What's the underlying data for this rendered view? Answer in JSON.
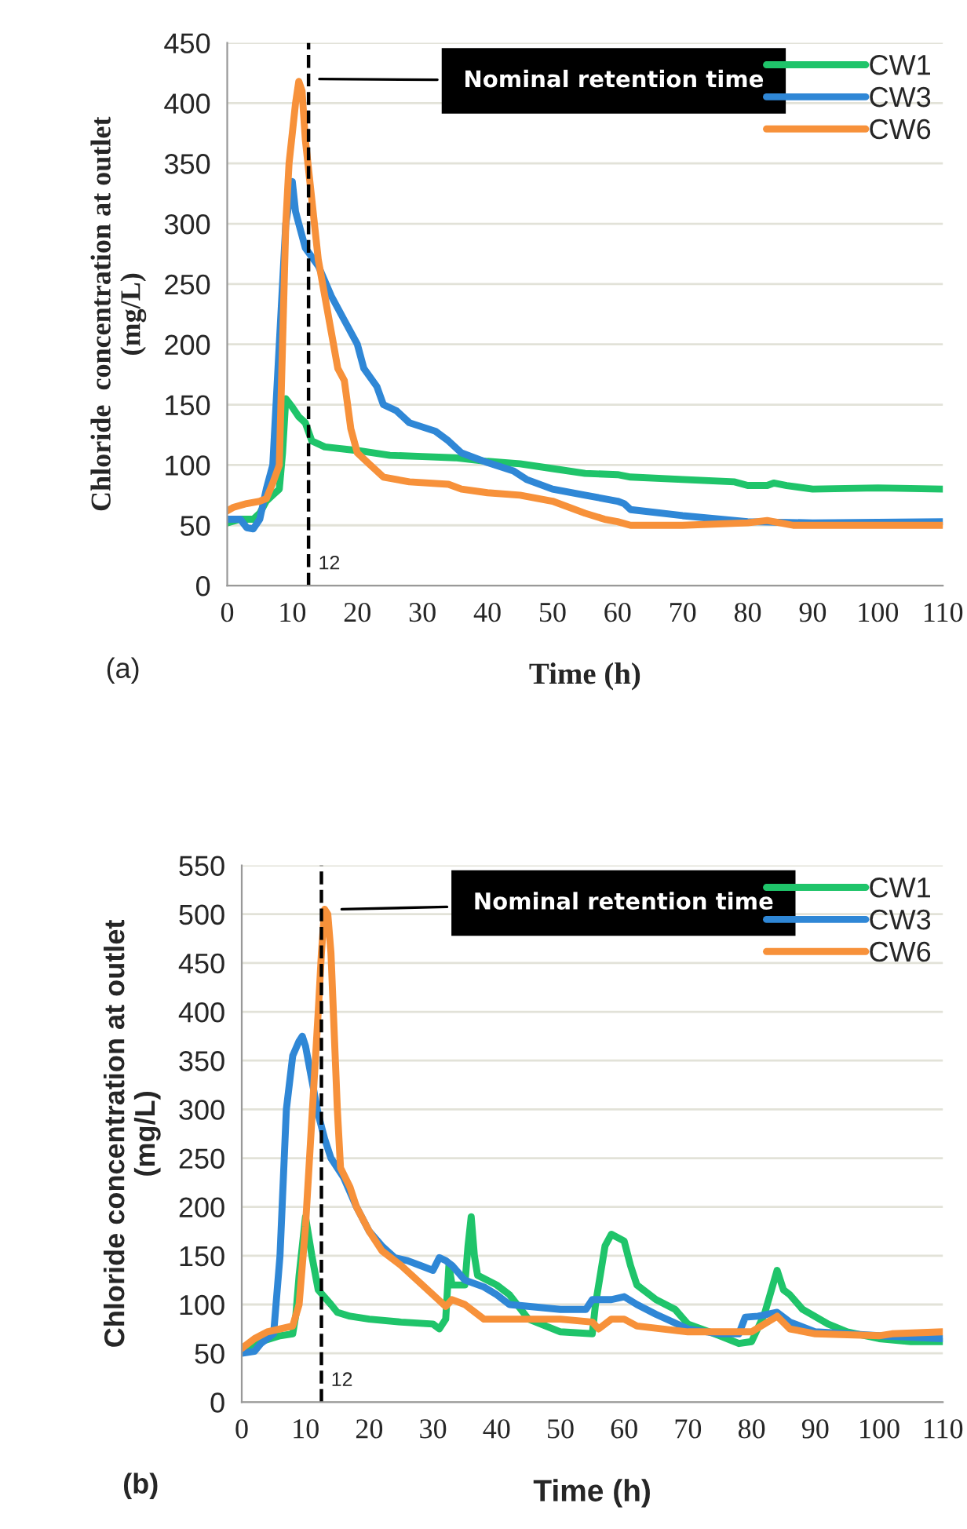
{
  "chart_data": [
    {
      "type": "line",
      "xlabel": "Time (h)",
      "ylabel": "Chloride  concentration at outlet\n(mg/L)",
      "xlim": [
        0,
        110
      ],
      "xticks": [
        0,
        10,
        20,
        30,
        40,
        50,
        60,
        70,
        80,
        90,
        100,
        110
      ],
      "ylim": [
        0,
        450
      ],
      "yticks": [
        0,
        50,
        100,
        150,
        200,
        250,
        300,
        350,
        400,
        450
      ],
      "grid": "y",
      "legend": "top right",
      "marker": "none",
      "line_style": "solid",
      "ref_lines": [
        {
          "axis": "x",
          "value": 12.5,
          "label": "12",
          "color": "#000000",
          "line_style": "dashed"
        }
      ],
      "annotations": [
        {
          "text": "Nominal retention time",
          "x": 13.5,
          "y": 420
        },
        "(a)"
      ],
      "series": [
        {
          "name": "CW1",
          "color": "#1fc46a",
          "x": [
            0,
            2,
            4,
            5,
            6,
            7,
            8,
            8.5,
            9,
            10,
            11,
            12,
            13,
            15,
            20,
            25,
            30,
            35,
            40,
            45,
            50,
            55,
            60,
            62,
            70,
            78,
            80,
            83,
            84,
            86,
            90,
            100,
            110
          ],
          "values": [
            52,
            55,
            55,
            60,
            70,
            75,
            80,
            110,
            155,
            148,
            140,
            135,
            120,
            115,
            112,
            108,
            107,
            106,
            103,
            101,
            97,
            93,
            92,
            90,
            88,
            86,
            83,
            83,
            85,
            83,
            80,
            81,
            80
          ]
        },
        {
          "name": "CW3",
          "color": "#2f87d6",
          "x": [
            0,
            2,
            3,
            4,
            5,
            6,
            7,
            8,
            9,
            10,
            10.5,
            11,
            12,
            14,
            16,
            18,
            20,
            21,
            23,
            24,
            26,
            28,
            32,
            34,
            36,
            40,
            44,
            46,
            50,
            55,
            60,
            61,
            62,
            70,
            80,
            90,
            110
          ],
          "values": [
            55,
            55,
            48,
            47,
            55,
            80,
            100,
            200,
            300,
            335,
            310,
            300,
            280,
            265,
            240,
            220,
            200,
            180,
            165,
            150,
            145,
            135,
            128,
            120,
            110,
            102,
            95,
            88,
            80,
            75,
            70,
            68,
            63,
            58,
            53,
            52,
            53
          ]
        },
        {
          "name": "CW6",
          "color": "#f7913a",
          "x": [
            0,
            1,
            3,
            5,
            6,
            7,
            8,
            8.5,
            9,
            9.5,
            10.5,
            11,
            11.5,
            12,
            13,
            14,
            16,
            17,
            18,
            19,
            20,
            22,
            24,
            28,
            34,
            36,
            40,
            45,
            50,
            55,
            58,
            60,
            62,
            70,
            80,
            83,
            87,
            90,
            110
          ],
          "values": [
            62,
            65,
            68,
            70,
            72,
            85,
            100,
            200,
            300,
            350,
            400,
            418,
            410,
            370,
            320,
            270,
            210,
            180,
            170,
            130,
            110,
            100,
            90,
            86,
            84,
            80,
            77,
            75,
            70,
            60,
            55,
            53,
            50,
            50,
            52,
            54,
            50,
            50,
            50
          ]
        }
      ]
    },
    {
      "type": "line",
      "xlabel": "Time (h)",
      "ylabel": "Chloride concentration at outlet\n(mg/L)",
      "xlim": [
        0,
        110
      ],
      "xticks": [
        0,
        10,
        20,
        30,
        40,
        50,
        60,
        70,
        80,
        90,
        100,
        110
      ],
      "ylim": [
        0,
        550
      ],
      "yticks": [
        0,
        50,
        100,
        150,
        200,
        250,
        300,
        350,
        400,
        450,
        500,
        550
      ],
      "grid": "y",
      "legend": "top right",
      "marker": "none",
      "line_style": "solid",
      "ref_lines": [
        {
          "axis": "x",
          "value": 12.5,
          "label": "12",
          "color": "#000000",
          "line_style": "dashed"
        }
      ],
      "annotations": [
        {
          "text": "Nominal retention time",
          "x": 15,
          "y": 505
        },
        "(b)"
      ],
      "series": [
        {
          "name": "CW1",
          "color": "#1fc46a",
          "x": [
            0,
            3,
            6,
            8,
            8.5,
            9,
            10,
            11,
            12,
            14,
            15,
            17,
            20,
            25,
            30,
            31,
            32,
            32.5,
            33,
            35,
            35.5,
            36,
            36.5,
            37,
            40,
            42,
            45,
            50,
            55,
            55.5,
            57,
            58,
            60,
            61,
            62,
            65,
            68,
            70,
            75,
            78,
            80,
            82,
            84,
            85,
            86,
            88,
            92,
            95,
            100,
            105,
            110
          ],
          "values": [
            55,
            62,
            68,
            70,
            90,
            130,
            190,
            150,
            115,
            100,
            92,
            88,
            85,
            82,
            80,
            75,
            85,
            140,
            120,
            120,
            160,
            190,
            150,
            130,
            120,
            110,
            85,
            72,
            70,
            100,
            160,
            172,
            165,
            140,
            120,
            105,
            95,
            80,
            68,
            60,
            62,
            90,
            135,
            115,
            110,
            95,
            80,
            72,
            65,
            62,
            62
          ]
        },
        {
          "name": "CW3",
          "color": "#2f87d6",
          "x": [
            0,
            2,
            3,
            5,
            6,
            7,
            8,
            9,
            9.5,
            10,
            11,
            12,
            13,
            14,
            16,
            18,
            20,
            22,
            24,
            26,
            28,
            30,
            31,
            32,
            33,
            35,
            38,
            40,
            42,
            50,
            54,
            55,
            58,
            60,
            62,
            65,
            70,
            75,
            78,
            79,
            81,
            84,
            86,
            90,
            100,
            110
          ],
          "values": [
            50,
            52,
            60,
            70,
            150,
            300,
            355,
            370,
            375,
            365,
            330,
            295,
            270,
            250,
            230,
            200,
            175,
            160,
            148,
            145,
            140,
            135,
            148,
            145,
            140,
            125,
            118,
            110,
            100,
            95,
            95,
            105,
            105,
            108,
            100,
            90,
            75,
            70,
            70,
            87,
            88,
            92,
            82,
            72,
            68,
            65
          ]
        },
        {
          "name": "CW6",
          "color": "#f7913a",
          "x": [
            0,
            2,
            4,
            6,
            8,
            9,
            10,
            11,
            12,
            12.5,
            13,
            13.5,
            14,
            15,
            15.5,
            17,
            18,
            20,
            22,
            25,
            30,
            32,
            33,
            35,
            38,
            45,
            50,
            55,
            56,
            58,
            60,
            62,
            70,
            80,
            84,
            86,
            90,
            100,
            102,
            110
          ],
          "values": [
            55,
            65,
            72,
            75,
            78,
            100,
            180,
            290,
            400,
            460,
            505,
            500,
            460,
            300,
            240,
            220,
            200,
            175,
            155,
            140,
            110,
            98,
            105,
            100,
            85,
            85,
            85,
            82,
            75,
            85,
            85,
            78,
            72,
            72,
            88,
            75,
            70,
            68,
            70,
            72
          ]
        }
      ]
    }
  ]
}
